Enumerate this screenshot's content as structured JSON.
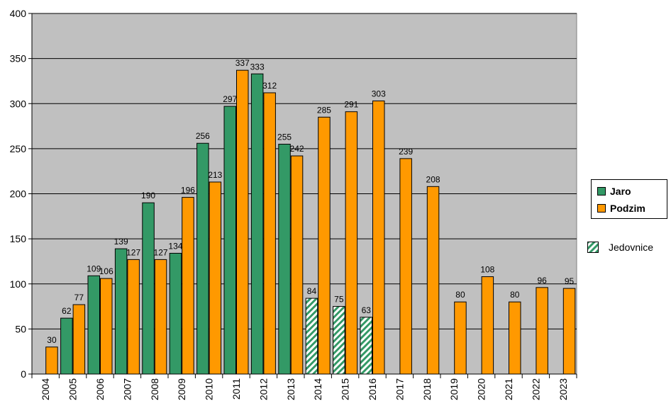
{
  "chart_data": {
    "type": "bar",
    "categories": [
      "2004",
      "2005",
      "2006",
      "2007",
      "2008",
      "2009",
      "2010",
      "2011",
      "2012",
      "2013",
      "2014",
      "2015",
      "2016",
      "2017",
      "2018",
      "2019",
      "2020",
      "2021",
      "2022",
      "2023"
    ],
    "series": [
      {
        "name": "Jaro",
        "color": "#339966",
        "values": [
          null,
          62,
          109,
          139,
          190,
          134,
          256,
          297,
          333,
          255,
          84,
          75,
          63,
          null,
          null,
          null,
          null,
          null,
          null,
          null
        ],
        "hatched_categories": [
          "2014",
          "2015",
          "2016"
        ]
      },
      {
        "name": "Podzim",
        "color": "#FF9900",
        "values": [
          30,
          77,
          106,
          127,
          127,
          196,
          213,
          337,
          312,
          242,
          285,
          291,
          303,
          239,
          208,
          80,
          108,
          80,
          96,
          95
        ]
      }
    ],
    "ylim": [
      0,
      400
    ],
    "yticks": [
      0,
      50,
      100,
      150,
      200,
      250,
      300,
      350,
      400
    ],
    "grid": true,
    "plot_background": "#C0C0C0",
    "legend": {
      "position": "right",
      "entries": [
        "Jaro",
        "Podzim"
      ],
      "extra_entry": {
        "label": "Jedovnice",
        "pattern": "hatched-green"
      }
    },
    "title": "",
    "xlabel": "",
    "ylabel": ""
  }
}
